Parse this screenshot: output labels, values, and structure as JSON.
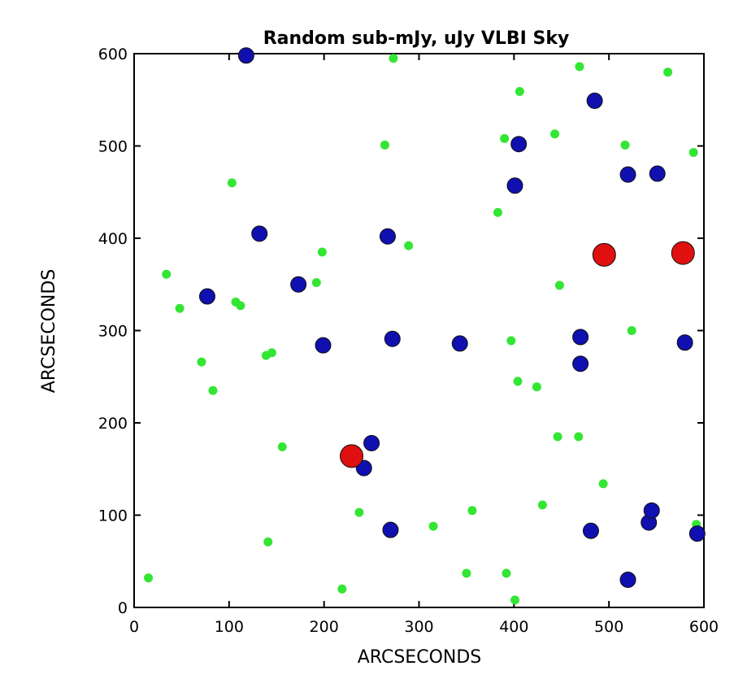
{
  "chart_data": {
    "type": "scatter",
    "title": "Random sub-mJy, uJy VLBI Sky",
    "xlabel": "ARCSECONDS",
    "ylabel": "ARCSECONDS",
    "xlim": [
      0,
      600
    ],
    "ylim": [
      0,
      600
    ],
    "xticks": [
      "0",
      "100",
      "200",
      "300",
      "400",
      "500",
      "600"
    ],
    "yticks": [
      "0",
      "100",
      "200",
      "300",
      "400",
      "500",
      "600"
    ],
    "grid": false,
    "series": [
      {
        "color": "#33e633",
        "marker": "small",
        "points": [
          [
            15,
            32
          ],
          [
            34,
            361
          ],
          [
            48,
            324
          ],
          [
            71,
            266
          ],
          [
            83,
            235
          ],
          [
            103,
            460
          ],
          [
            107,
            331
          ],
          [
            112,
            327
          ],
          [
            139,
            273
          ],
          [
            145,
            276
          ],
          [
            141,
            71
          ],
          [
            156,
            174
          ],
          [
            192,
            352
          ],
          [
            198,
            385
          ],
          [
            219,
            20
          ],
          [
            237,
            103
          ],
          [
            264,
            501
          ],
          [
            273,
            595
          ],
          [
            289,
            392
          ],
          [
            315,
            88
          ],
          [
            350,
            37
          ],
          [
            356,
            105
          ],
          [
            383,
            428
          ],
          [
            390,
            508
          ],
          [
            392,
            37
          ],
          [
            397,
            289
          ],
          [
            401,
            8
          ],
          [
            404,
            245
          ],
          [
            406,
            559
          ],
          [
            424,
            239
          ],
          [
            430,
            111
          ],
          [
            443,
            513
          ],
          [
            446,
            185
          ],
          [
            448,
            349
          ],
          [
            468,
            185
          ],
          [
            469,
            586
          ],
          [
            494,
            134
          ],
          [
            517,
            501
          ],
          [
            524,
            300
          ],
          [
            562,
            580
          ],
          [
            589,
            493
          ],
          [
            592,
            90
          ]
        ]
      },
      {
        "color": "#1010b0",
        "marker": "medium",
        "points": [
          [
            118,
            598
          ],
          [
            77,
            337
          ],
          [
            132,
            405
          ],
          [
            173,
            350
          ],
          [
            199,
            284
          ],
          [
            242,
            151
          ],
          [
            250,
            178
          ],
          [
            267,
            402
          ],
          [
            270,
            84
          ],
          [
            272,
            291
          ],
          [
            343,
            286
          ],
          [
            401,
            457
          ],
          [
            405,
            502
          ],
          [
            470,
            293
          ],
          [
            470,
            264
          ],
          [
            481,
            83
          ],
          [
            485,
            549
          ],
          [
            520,
            469
          ],
          [
            520,
            30
          ],
          [
            542,
            92
          ],
          [
            545,
            105
          ],
          [
            551,
            470
          ],
          [
            580,
            287
          ],
          [
            593,
            80
          ]
        ]
      },
      {
        "color": "#e01010",
        "marker": "large",
        "points": [
          [
            229,
            164
          ],
          [
            495,
            382
          ],
          [
            578,
            384
          ]
        ]
      }
    ]
  }
}
